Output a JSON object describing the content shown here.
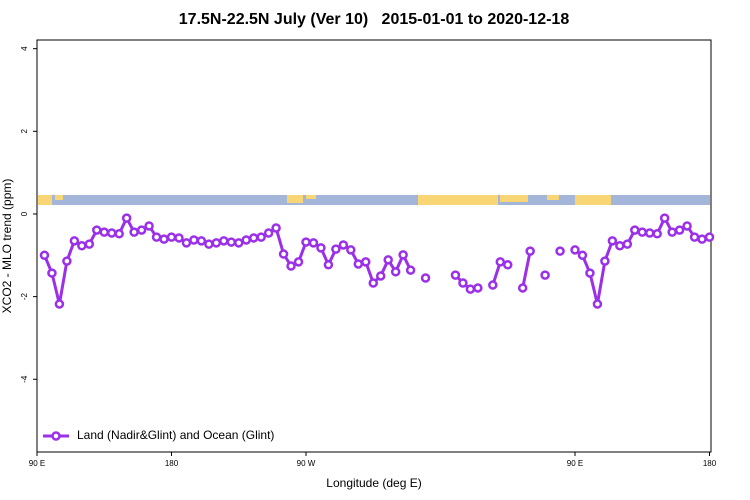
{
  "chart_data": {
    "type": "line",
    "title": "17.5N-22.5N July (Ver 10)   2015-01-01 to 2020-12-18",
    "x_label": "Longitude (deg E)",
    "y_label": "XCO2 - MLO trend (ppm)",
    "xlim": [
      90,
      541
    ],
    "ylim": [
      -5.76,
      4.21
    ],
    "xticks": [
      {
        "value": 90,
        "label": "90 E"
      },
      180,
      {
        "value": 270,
        "label": "90 W"
      },
      {
        "value": 450,
        "label": "90 E"
      },
      {
        "value": 540,
        "label": "180"
      }
    ],
    "yticks": [
      4,
      2,
      0,
      -2,
      -4
    ],
    "legend": "bottom-left",
    "x": [
      95,
      100,
      105,
      110,
      115,
      120,
      125,
      130,
      135,
      140,
      145,
      150,
      155,
      160,
      165,
      170,
      175,
      180,
      185,
      190,
      195,
      200,
      205,
      210,
      215,
      220,
      225,
      230,
      235,
      240,
      245,
      250,
      255,
      260,
      265,
      270,
      275,
      280,
      285,
      290,
      295,
      300,
      305,
      310,
      315,
      320,
      325,
      330,
      335,
      340,
      345,
      350,
      355,
      360,
      365,
      370,
      375,
      380,
      385,
      390,
      395,
      400,
      405,
      410,
      415,
      420,
      425,
      430,
      435,
      440,
      445,
      450,
      455,
      460,
      465,
      470,
      475,
      480,
      485,
      490,
      495,
      500,
      505,
      510,
      515,
      520,
      525,
      530,
      535,
      540
    ],
    "series": [
      {
        "name": "Land (Nadir&Glint) and Ocean (Glint)",
        "color": "#9b30e8",
        "values": [
          -1.0,
          -1.43,
          -2.18,
          -1.14,
          -0.65,
          -0.77,
          -0.73,
          -0.39,
          -0.44,
          -0.46,
          -0.48,
          -0.1,
          -0.44,
          -0.39,
          -0.29,
          -0.56,
          -0.61,
          -0.56,
          -0.58,
          -0.7,
          -0.63,
          -0.65,
          -0.73,
          -0.7,
          -0.65,
          -0.68,
          -0.7,
          -0.63,
          -0.58,
          -0.56,
          -0.46,
          -0.34,
          -0.97,
          -1.26,
          -1.16,
          -0.68,
          -0.7,
          -0.82,
          -1.23,
          -0.85,
          -0.75,
          -0.87,
          -1.21,
          -1.16,
          -1.67,
          -1.5,
          -1.11,
          -1.4,
          -0.99,
          -1.36,
          null,
          -1.55,
          null,
          null,
          null,
          -1.48,
          -1.67,
          -1.82,
          -1.79,
          null,
          -1.72,
          -1.16,
          -1.23,
          null,
          -1.79,
          -0.9,
          null,
          -1.48,
          null,
          -0.9,
          null,
          -0.87,
          -1.0,
          -1.43,
          -2.18,
          -1.14,
          -0.65,
          -0.77,
          -0.73,
          -0.39,
          -0.44,
          -0.46,
          -0.48,
          -0.1,
          -0.44,
          -0.39,
          -0.29,
          -0.56,
          -0.61,
          -0.56
        ]
      }
    ]
  }
}
